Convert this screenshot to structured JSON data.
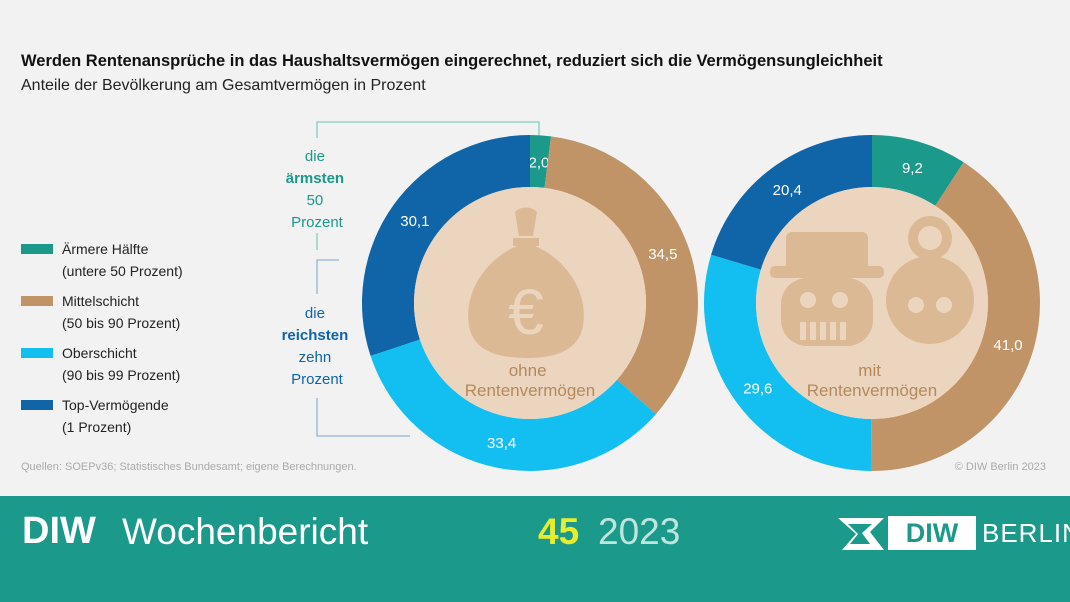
{
  "title": "Werden Rentenansprüche in das Haushaltsvermögen eingerechnet, reduziert sich die Vermögensungleichheit",
  "subtitle": "Anteile der Bevölkerung am Gesamtvermögen in Prozent",
  "legend": [
    {
      "line1": "Ärmere Hälfte",
      "line2": "(untere 50 Prozent)",
      "color": "#1b998b"
    },
    {
      "line1": "Mittelschicht",
      "line2": "(50 bis 90 Prozent)",
      "color": "#c09467"
    },
    {
      "line1": "Oberschicht",
      "line2": "(90 bis 99 Prozent)",
      "color": "#12bff0"
    },
    {
      "line1": "Top-Vermögende",
      "line2": "(1 Prozent)",
      "color": "#1064a8"
    }
  ],
  "callouts": {
    "poorest": {
      "lines": [
        "die",
        "ärmsten",
        "50",
        "Prozent"
      ]
    },
    "richest": {
      "lines": [
        "die",
        "reichsten",
        "zehn",
        "Prozent"
      ]
    }
  },
  "chart_data": [
    {
      "type": "pie",
      "center_label": [
        "ohne",
        "Rentenvermögen"
      ],
      "categories": [
        "Ärmere Hälfte",
        "Mittelschicht",
        "Oberschicht",
        "Top-Vermögende"
      ],
      "values": [
        2.0,
        34.5,
        33.4,
        30.1
      ],
      "labels": [
        "2,0",
        "34,5",
        "33,4",
        "30,1"
      ]
    },
    {
      "type": "pie",
      "center_label": [
        "mit",
        "Rentenvermögen"
      ],
      "categories": [
        "Ärmere Hälfte",
        "Mittelschicht",
        "Oberschicht",
        "Top-Vermögende"
      ],
      "values": [
        9.2,
        41.0,
        29.6,
        20.4
      ],
      "labels": [
        "9,2",
        "41,0",
        "29,6",
        "20,4"
      ]
    }
  ],
  "colors": {
    "poorest": "#1b998b",
    "middle": "#c09467",
    "upper": "#12bff0",
    "top": "#1064a8",
    "inner": "#ecd5be",
    "icon": "#dcb995",
    "center_text": "#b5895c",
    "callout": "#1b998b",
    "callout_rich": "#1064a8"
  },
  "icons": {
    "left": "money-bag-euro-icon",
    "right": "elderly-couple-icon"
  },
  "source": "Quellen: SOEPv36; Statistisches Bundesamt; eigene Berechnungen.",
  "copyright": "© DIW Berlin 2023",
  "footer": {
    "diw": "DIW",
    "wochenbericht": "Wochenbericht",
    "issue": "45",
    "year": "2023",
    "logo_diw": "DIW",
    "logo_berlin": "BERLIN"
  }
}
